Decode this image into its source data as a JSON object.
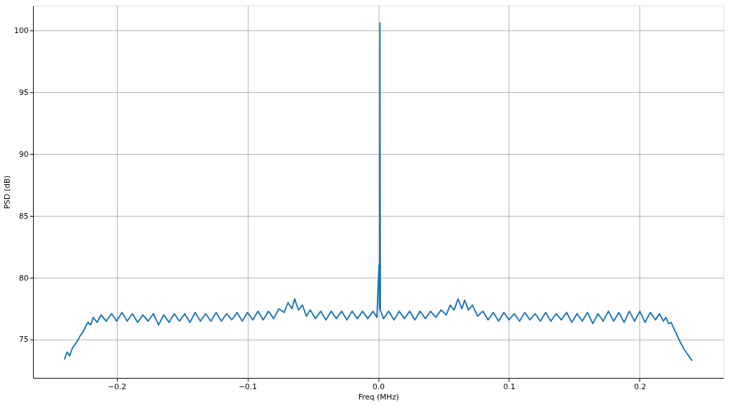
{
  "chart_data": {
    "type": "line",
    "xlabel": "Freq (MHz)",
    "ylabel": "PSD (dB)",
    "xlim": [
      -0.264,
      0.264
    ],
    "ylim": [
      71.9,
      102.0
    ],
    "xticks": [
      {
        "value": -0.2,
        "label": "−0.2"
      },
      {
        "value": -0.1,
        "label": "−0.1"
      },
      {
        "value": 0,
        "label": "0.0"
      },
      0.1,
      0.2
    ],
    "yticks": [
      75,
      80,
      85,
      90,
      95,
      100
    ],
    "grid": true,
    "marker": "none",
    "line_style": "solid",
    "series": [
      {
        "color": "#1f77b4",
        "x": [
          -0.24,
          -0.238,
          -0.236,
          -0.234,
          -0.232,
          -0.23,
          -0.228,
          -0.226,
          -0.224,
          -0.222,
          -0.22,
          -0.218,
          -0.215,
          -0.212,
          -0.208,
          -0.204,
          -0.2,
          -0.196,
          -0.192,
          -0.188,
          -0.184,
          -0.18,
          -0.176,
          -0.172,
          -0.168,
          -0.164,
          -0.16,
          -0.156,
          -0.152,
          -0.148,
          -0.144,
          -0.14,
          -0.136,
          -0.132,
          -0.128,
          -0.124,
          -0.12,
          -0.116,
          -0.112,
          -0.108,
          -0.104,
          -0.1,
          -0.096,
          -0.092,
          -0.088,
          -0.084,
          -0.08,
          -0.076,
          -0.072,
          -0.069,
          -0.066,
          -0.064,
          -0.061,
          -0.058,
          -0.055,
          -0.052,
          -0.048,
          -0.044,
          -0.04,
          -0.036,
          -0.032,
          -0.028,
          -0.024,
          -0.02,
          -0.016,
          -0.012,
          -0.008,
          -0.004,
          -0.001,
          0.0005,
          0.001,
          0.0013,
          0.0016,
          0.004,
          0.008,
          0.012,
          0.016,
          0.02,
          0.024,
          0.028,
          0.032,
          0.036,
          0.04,
          0.044,
          0.048,
          0.052,
          0.055,
          0.058,
          0.061,
          0.064,
          0.066,
          0.069,
          0.072,
          0.076,
          0.08,
          0.084,
          0.088,
          0.092,
          0.096,
          0.1,
          0.104,
          0.108,
          0.112,
          0.116,
          0.12,
          0.124,
          0.128,
          0.132,
          0.136,
          0.14,
          0.144,
          0.148,
          0.152,
          0.156,
          0.16,
          0.164,
          0.168,
          0.172,
          0.176,
          0.18,
          0.184,
          0.188,
          0.192,
          0.196,
          0.2,
          0.204,
          0.208,
          0.212,
          0.215,
          0.218,
          0.22,
          0.222,
          0.224,
          0.226,
          0.228,
          0.23,
          0.232,
          0.234,
          0.236,
          0.238,
          0.24
        ],
        "values": [
          73.4,
          74.0,
          73.7,
          74.3,
          74.6,
          74.9,
          75.3,
          75.6,
          76.0,
          76.4,
          76.2,
          76.8,
          76.4,
          77.0,
          76.5,
          77.1,
          76.5,
          77.2,
          76.5,
          77.1,
          76.4,
          77.0,
          76.5,
          77.1,
          76.2,
          77.0,
          76.4,
          77.1,
          76.5,
          77.1,
          76.4,
          77.2,
          76.5,
          77.1,
          76.5,
          77.2,
          76.5,
          77.1,
          76.6,
          77.2,
          76.5,
          77.2,
          76.6,
          77.3,
          76.6,
          77.3,
          76.7,
          77.5,
          77.2,
          78.0,
          77.5,
          78.3,
          77.4,
          77.8,
          76.9,
          77.4,
          76.7,
          77.3,
          76.6,
          77.3,
          76.7,
          77.3,
          76.6,
          77.3,
          76.7,
          77.3,
          76.7,
          77.3,
          76.8,
          81.0,
          77.5,
          100.6,
          77.4,
          76.7,
          77.3,
          76.6,
          77.3,
          76.7,
          77.3,
          76.6,
          77.3,
          76.7,
          77.3,
          76.8,
          77.4,
          77.0,
          77.8,
          77.4,
          78.3,
          77.5,
          78.2,
          77.4,
          77.8,
          76.9,
          77.3,
          76.6,
          77.2,
          76.5,
          77.2,
          76.6,
          77.1,
          76.5,
          77.2,
          76.6,
          77.1,
          76.5,
          77.2,
          76.5,
          77.1,
          76.6,
          77.2,
          76.4,
          77.1,
          76.5,
          77.2,
          76.3,
          77.1,
          76.5,
          77.3,
          76.5,
          77.2,
          76.4,
          77.3,
          76.5,
          77.3,
          76.4,
          77.2,
          76.6,
          77.1,
          76.5,
          76.8,
          76.3,
          76.4,
          75.9,
          75.5,
          75.0,
          74.6,
          74.2,
          73.9,
          73.6,
          73.3
        ]
      }
    ]
  }
}
